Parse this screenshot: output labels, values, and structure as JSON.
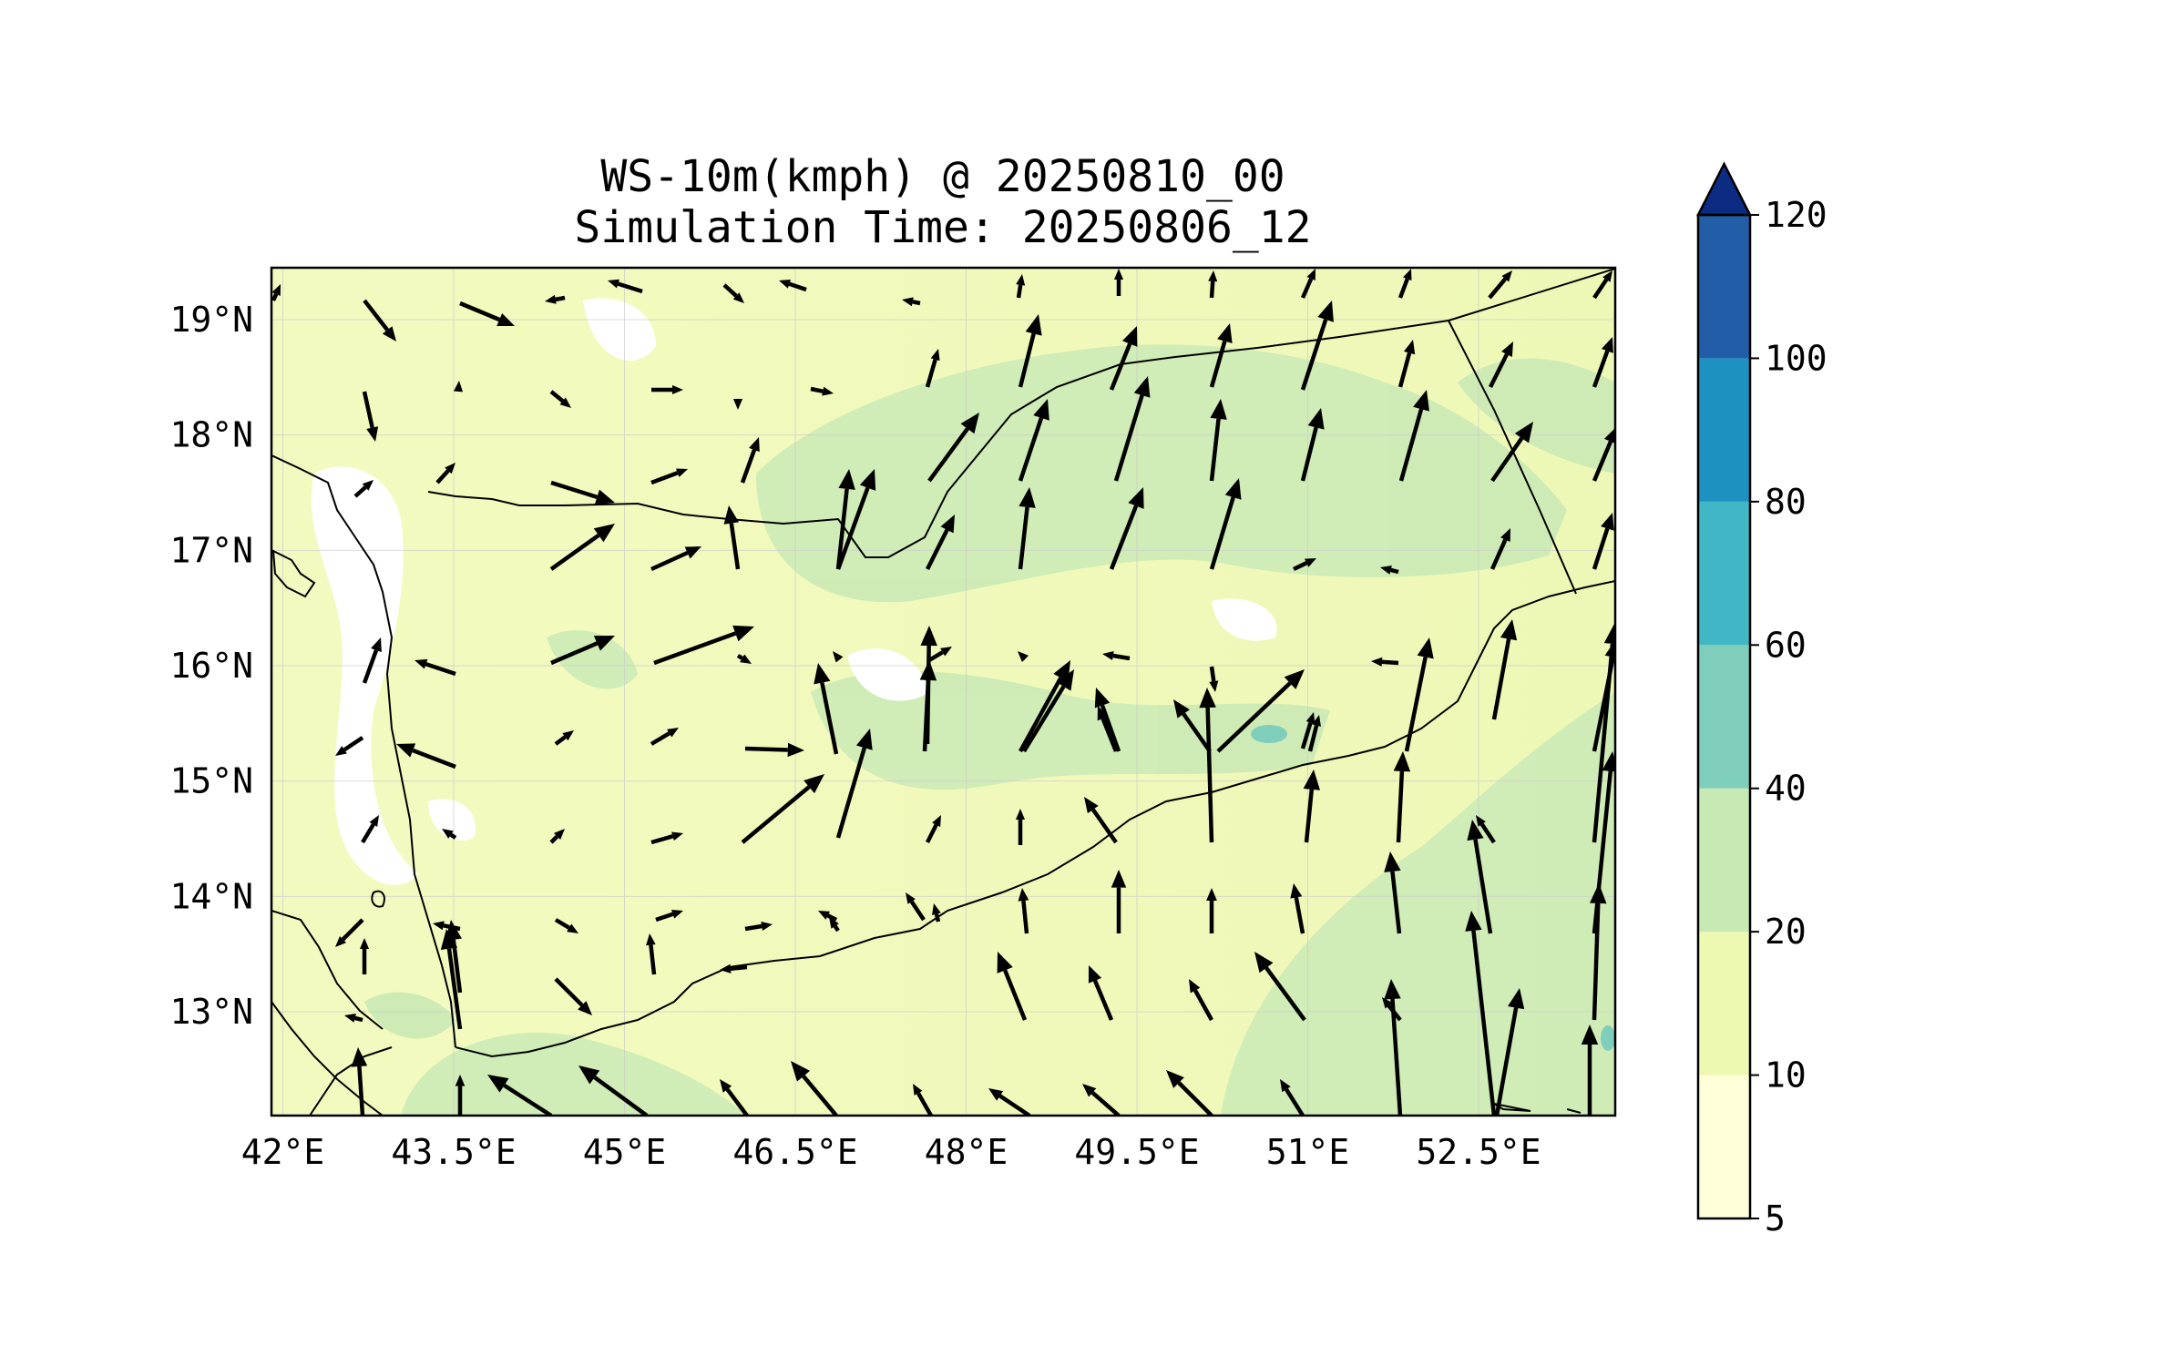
{
  "map": {
    "title_line1": "WS-10m(kmph) @ 20250810_00",
    "title_line2": "Simulation Time: 20250806_12",
    "lon_labels": [
      "42°E",
      "43.5°E",
      "45°E",
      "46.5°E",
      "48°E",
      "49.5°E",
      "51°E",
      "52.5°E"
    ],
    "lat_labels": [
      "19°N",
      "18°N",
      "17°N",
      "16°N",
      "15°N",
      "14°N",
      "13°N"
    ],
    "lon_values": [
      42,
      43.5,
      45,
      46.5,
      48,
      49.5,
      51,
      52.5
    ],
    "lat_values": [
      19,
      18,
      17,
      16,
      15,
      14,
      13
    ],
    "extent": {
      "lon": [
        41.9,
        53.7
      ],
      "lat": [
        12.1,
        19.45
      ]
    },
    "grid": true
  },
  "colorbar": {
    "levels": [
      5,
      10,
      20,
      40,
      60,
      80,
      100,
      120
    ],
    "labels": [
      "5",
      "10",
      "20",
      "40",
      "60",
      "80",
      "100",
      "120"
    ],
    "colors": [
      "#ffffd9",
      "#edf8b1",
      "#c7e9b4",
      "#7fcdbb",
      "#41b6c4",
      "#1d91c0",
      "#225ea8",
      "#0c2c84"
    ],
    "extend": "max"
  },
  "colors": {
    "land_low": "#ffffd9",
    "land_mid": "#edf8b1",
    "land_high": "#c7e9b4",
    "arrow": "#000000",
    "border": "#000000"
  }
}
